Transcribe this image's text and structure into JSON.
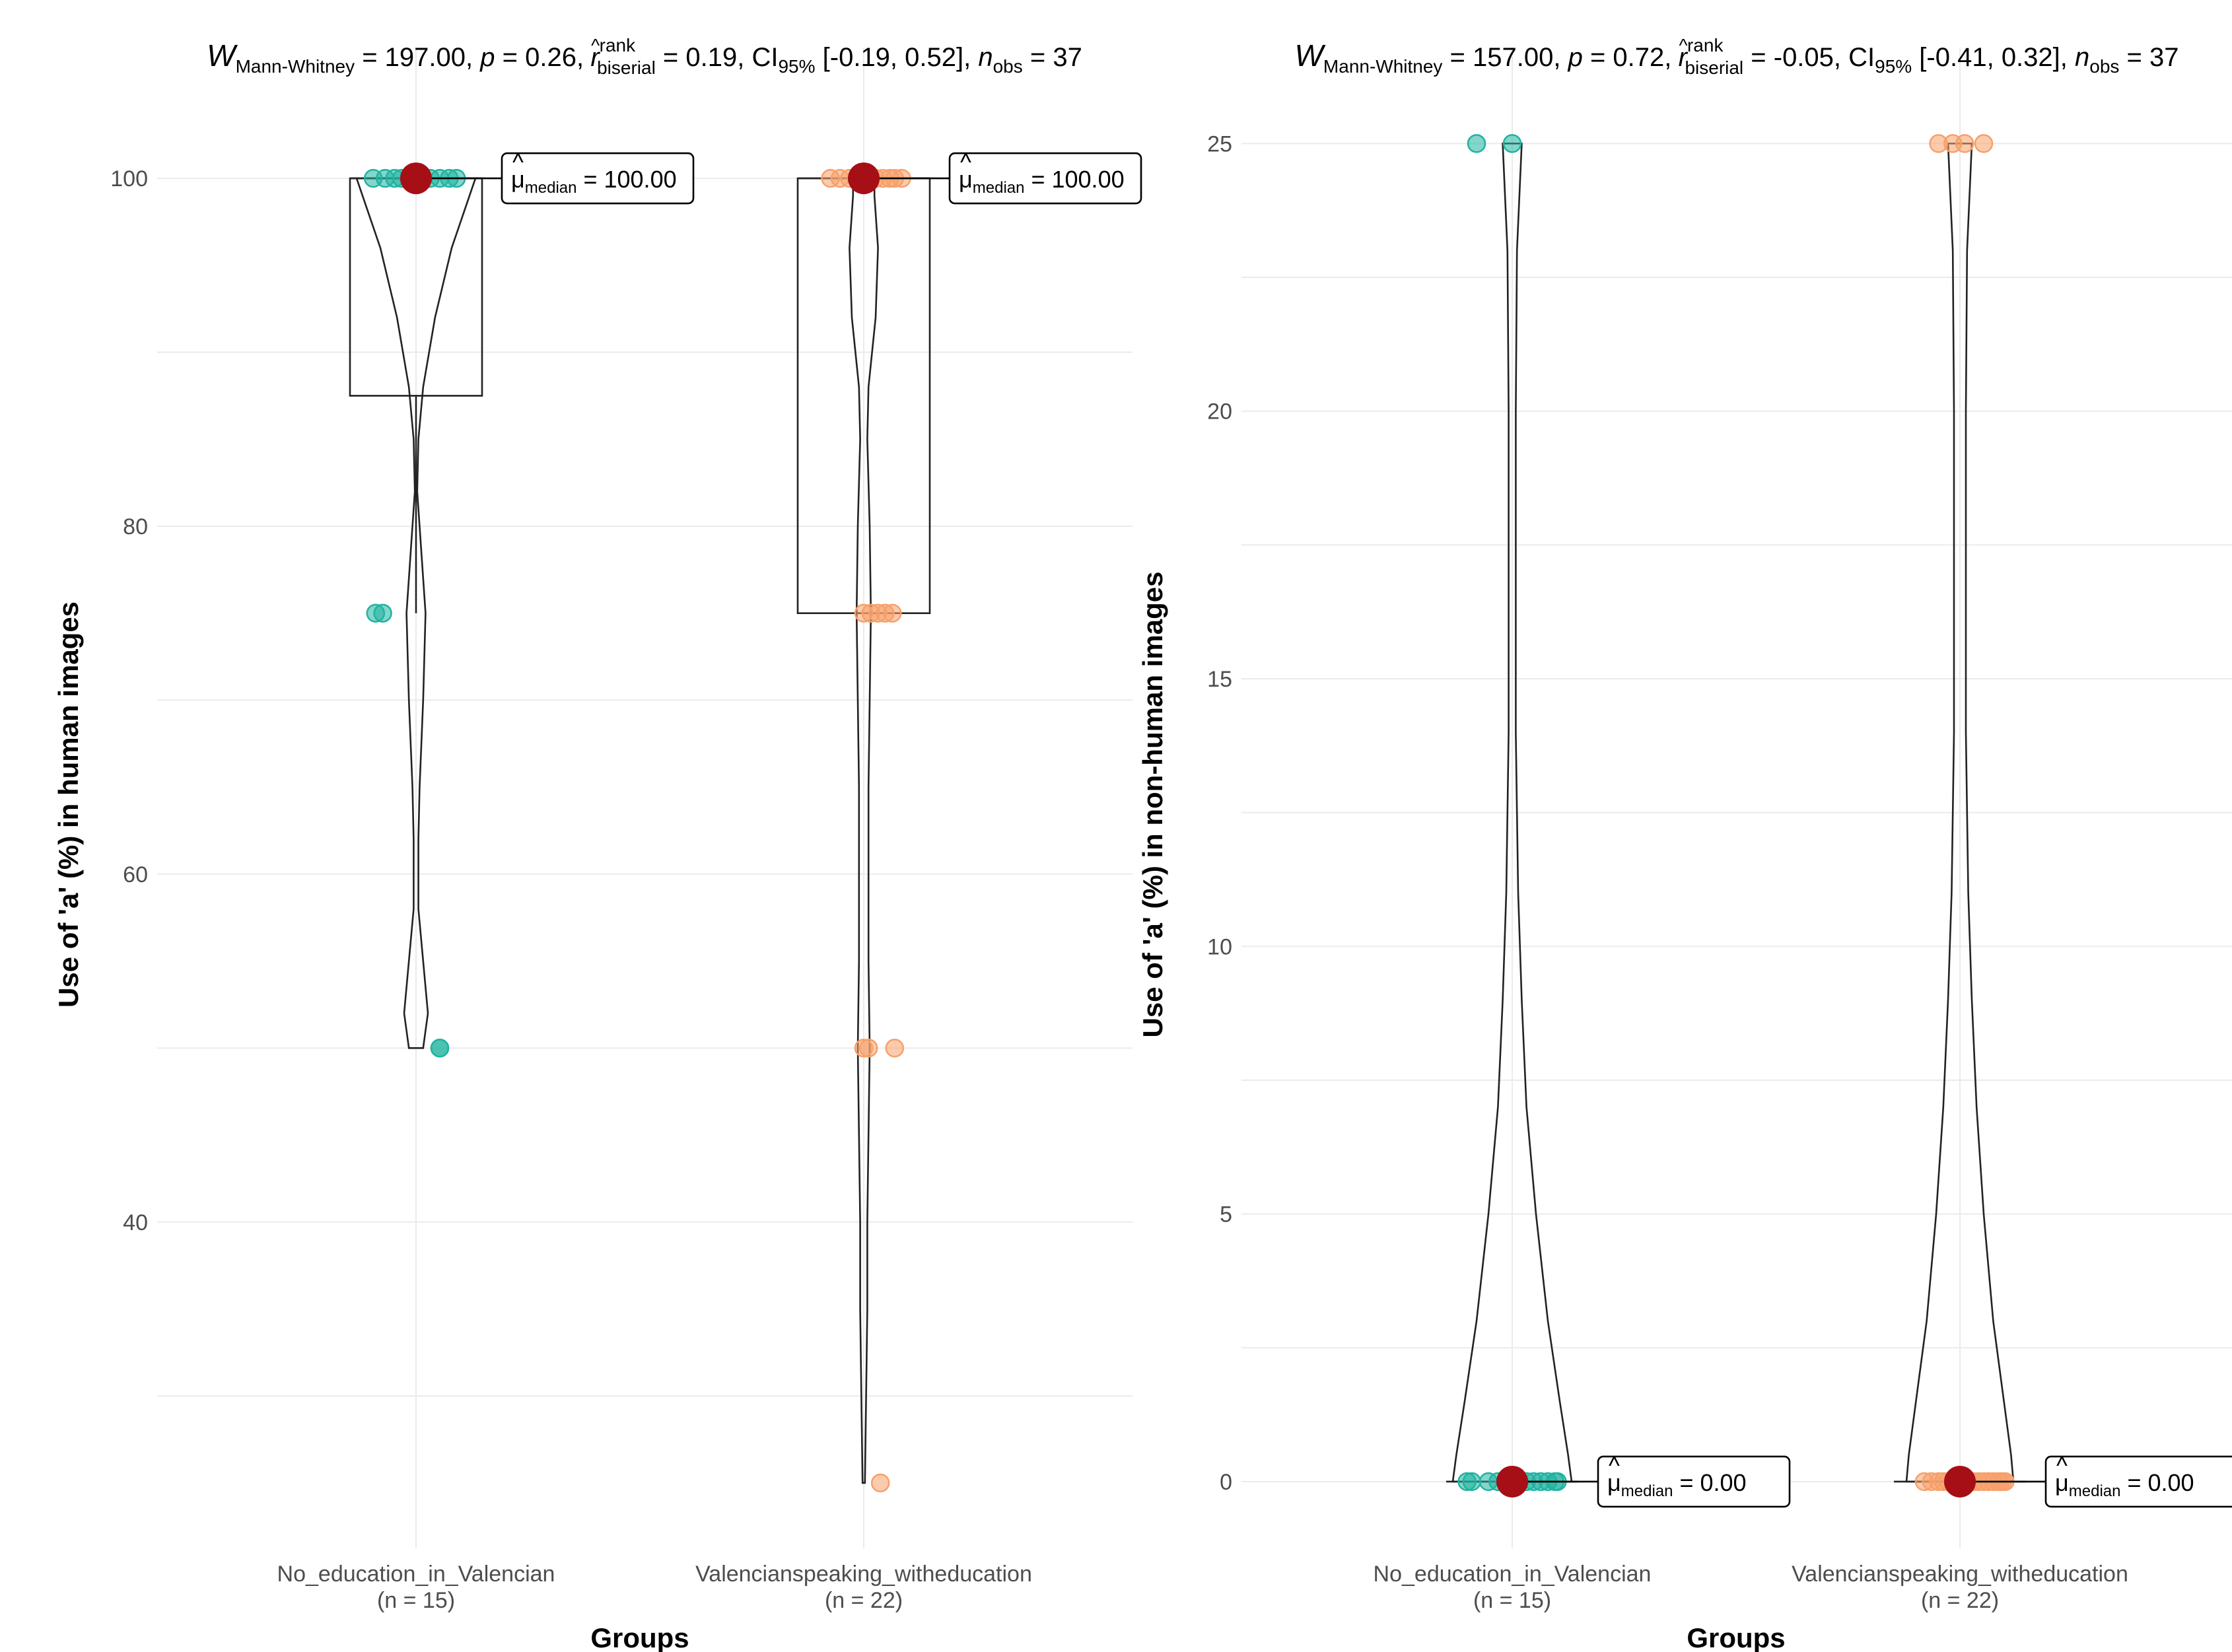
{
  "colors": {
    "group1": "#1fb3a0",
    "group2": "#f7a06a",
    "median_point": "#a50f15"
  },
  "chart_data": [
    {
      "type": "violin",
      "title": {
        "w_label": "W",
        "w_sub": "Mann-Whitney",
        "w_value": " = 197.00, ",
        "p_label": "p",
        "p_value": " = 0.26, ",
        "r_label": "r",
        "r_hat": "^",
        "r_sup": "rank",
        "r_sub": "biserial",
        "r_value": " = 0.19, ",
        "ci_label": "CI",
        "ci_sub": "95%",
        "ci_value": " [-0.19, 0.52], ",
        "n_label": "n",
        "n_sub": "obs",
        "n_value": " = 37"
      },
      "xlabel": "Groups",
      "ylabel": "Use of 'a' (%) in human images",
      "ylim": [
        22,
        106
      ],
      "yticks": [
        40,
        60,
        80,
        100
      ],
      "minor_grid": [
        30,
        50,
        70,
        90
      ],
      "groups": [
        {
          "name": "No_education_in_Valencian",
          "n_label": "(n = 15)",
          "color_key": "group1",
          "median": 100,
          "median_label": {
            "mu": "μ",
            "hat": "^",
            "sub": "median",
            "value": " = 100.00"
          },
          "box": {
            "q1": 87.5,
            "q3": 100,
            "median": 100,
            "whisker_low": 75,
            "whisker_high": 100
          },
          "points": [
            100,
            100,
            100,
            100,
            100,
            100,
            100,
            100,
            100,
            100,
            100,
            75,
            75,
            50,
            50
          ],
          "jitter": [
            -0.18,
            -0.13,
            -0.09,
            -0.06,
            -0.03,
            0.0,
            0.03,
            0.06,
            0.1,
            0.14,
            0.17,
            -0.17,
            -0.14,
            0.1,
            0.1
          ],
          "violin_profile": [
            [
              50,
              0.06
            ],
            [
              52,
              0.1
            ],
            [
              55,
              0.06
            ],
            [
              58,
              0.02
            ],
            [
              62,
              0.02
            ],
            [
              65,
              0.03
            ],
            [
              70,
              0.06
            ],
            [
              75,
              0.08
            ],
            [
              78,
              0.05
            ],
            [
              82,
              0.01
            ],
            [
              85,
              0.02
            ],
            [
              88,
              0.06
            ],
            [
              92,
              0.16
            ],
            [
              96,
              0.3
            ],
            [
              100,
              0.5
            ]
          ]
        },
        {
          "name": "Valencianspeaking_witheducation",
          "n_label": "(n = 22)",
          "color_key": "group2",
          "median": 100,
          "median_label": {
            "mu": "μ",
            "hat": "^",
            "sub": "median",
            "value": " = 100.00"
          },
          "box": {
            "q1": 75,
            "q3": 100,
            "median": 100,
            "whisker_low": 75,
            "whisker_high": 100
          },
          "points": [
            100,
            100,
            100,
            100,
            100,
            100,
            100,
            100,
            100,
            100,
            100,
            100,
            100,
            75,
            75,
            75,
            75,
            75,
            50,
            50,
            50,
            25
          ],
          "jitter": [
            -0.14,
            -0.1,
            -0.06,
            -0.03,
            0.0,
            0.02,
            0.05,
            0.08,
            0.11,
            0.13,
            0.16,
            0.03,
            -0.02,
            0.0,
            0.03,
            0.06,
            0.09,
            0.12,
            0.0,
            0.02,
            0.13,
            0.07
          ],
          "violin_profile": [
            [
              25,
              0.01
            ],
            [
              30,
              0.02
            ],
            [
              35,
              0.03
            ],
            [
              40,
              0.03
            ],
            [
              45,
              0.04
            ],
            [
              50,
              0.05
            ],
            [
              55,
              0.04
            ],
            [
              60,
              0.04
            ],
            [
              65,
              0.04
            ],
            [
              70,
              0.05
            ],
            [
              75,
              0.06
            ],
            [
              80,
              0.05
            ],
            [
              85,
              0.03
            ],
            [
              88,
              0.04
            ],
            [
              92,
              0.1
            ],
            [
              96,
              0.12
            ],
            [
              99,
              0.09
            ],
            [
              100,
              0.09
            ]
          ]
        }
      ]
    },
    {
      "type": "violin",
      "title": {
        "w_label": "W",
        "w_sub": "Mann-Whitney",
        "w_value": " = 157.00, ",
        "p_label": "p",
        "p_value": " = 0.72, ",
        "r_label": "r",
        "r_hat": "^",
        "r_sup": "rank",
        "r_sub": "biserial",
        "r_value": " = -0.05, ",
        "ci_label": "CI",
        "ci_sub": "95%",
        "ci_value": " [-0.41, 0.32], ",
        "n_label": "n",
        "n_sub": "obs",
        "n_value": " = 37"
      },
      "xlabel": "Groups",
      "ylabel": "Use of 'a' (%) in non-human images",
      "ylim": [
        -1,
        26.3
      ],
      "yticks": [
        0,
        5,
        10,
        15,
        20,
        25
      ],
      "minor_grid": [
        2.5,
        7.5,
        12.5,
        17.5,
        22.5
      ],
      "groups": [
        {
          "name": "No_education_in_Valencian",
          "n_label": "(n = 15)",
          "color_key": "group1",
          "median": 0,
          "median_label": {
            "mu": "μ",
            "hat": "^",
            "sub": "median",
            "value": " = 0.00"
          },
          "box": {
            "q1": 0,
            "q3": 0,
            "median": 0,
            "whisker_low": 0,
            "whisker_high": 0
          },
          "points": [
            0,
            0,
            0,
            0,
            0,
            0,
            0,
            0,
            0,
            0,
            0,
            0,
            0,
            25,
            25
          ],
          "jitter": [
            -0.19,
            -0.17,
            -0.1,
            -0.06,
            -0.03,
            0.0,
            0.03,
            0.06,
            0.09,
            0.12,
            0.15,
            0.18,
            0.19,
            -0.15,
            0.0
          ],
          "violin_profile": [
            [
              0,
              0.5
            ],
            [
              0.5,
              0.47
            ],
            [
              1.5,
              0.4
            ],
            [
              3,
              0.3
            ],
            [
              5,
              0.2
            ],
            [
              7,
              0.12
            ],
            [
              9,
              0.08
            ],
            [
              11,
              0.05
            ],
            [
              14,
              0.03
            ],
            [
              17,
              0.03
            ],
            [
              20,
              0.03
            ],
            [
              23,
              0.04
            ],
            [
              25,
              0.08
            ]
          ]
        },
        {
          "name": "Valencianspeaking_witheducation",
          "n_label": "(n = 22)",
          "color_key": "group2",
          "median": 0,
          "median_label": {
            "mu": "μ",
            "hat": "^",
            "sub": "median",
            "value": " = 0.00"
          },
          "box": {
            "q1": 0,
            "q3": 0,
            "median": 0,
            "whisker_low": 0,
            "whisker_high": 0
          },
          "points": [
            0,
            0,
            0,
            0,
            0,
            0,
            0,
            0,
            0,
            0,
            0,
            0,
            0,
            0,
            0,
            0,
            0,
            0,
            25,
            25,
            25,
            25
          ],
          "jitter": [
            -0.15,
            -0.12,
            -0.09,
            -0.07,
            -0.05,
            -0.03,
            0.0,
            0.02,
            0.04,
            0.06,
            0.08,
            0.1,
            0.12,
            0.14,
            0.16,
            0.17,
            0.18,
            0.19,
            -0.09,
            -0.03,
            0.02,
            0.1
          ],
          "violin_profile": [
            [
              0,
              0.45
            ],
            [
              0.5,
              0.43
            ],
            [
              1.5,
              0.37
            ],
            [
              3,
              0.28
            ],
            [
              5,
              0.2
            ],
            [
              7,
              0.14
            ],
            [
              9,
              0.1
            ],
            [
              11,
              0.07
            ],
            [
              14,
              0.05
            ],
            [
              17,
              0.05
            ],
            [
              20,
              0.05
            ],
            [
              23,
              0.06
            ],
            [
              25,
              0.1
            ]
          ]
        }
      ]
    }
  ]
}
